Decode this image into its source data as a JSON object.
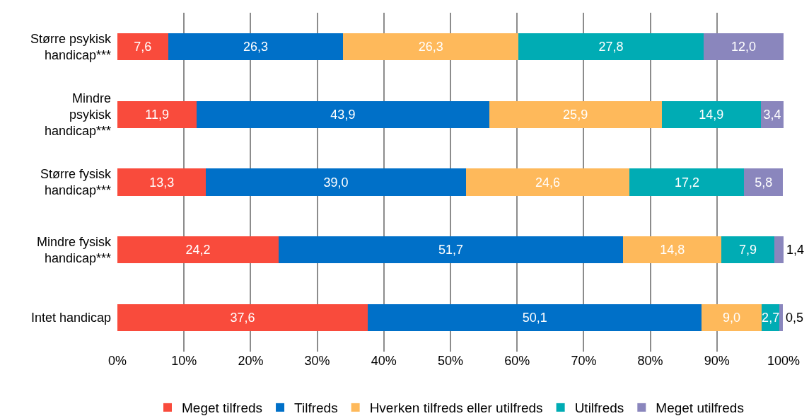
{
  "chart_data": {
    "type": "bar",
    "orientation": "horizontal",
    "stacked": true,
    "categories": [
      "Større psykisk\nhandicap***",
      "Mindre\npsykisk\nhandicap***",
      "Større fysisk\nhandicap***",
      "Mindre fysisk\nhandicap***",
      "Intet handicap"
    ],
    "series": [
      {
        "name": "Meget tilfreds",
        "color": "#f94b3c",
        "values": [
          7.6,
          11.9,
          13.3,
          24.2,
          37.6
        ],
        "value_labels": [
          "7,6",
          "11,9",
          "13,3",
          "24,2",
          "37,6"
        ]
      },
      {
        "name": "Tilfreds",
        "color": "#0070c8",
        "values": [
          26.3,
          43.9,
          39.0,
          51.7,
          50.1
        ],
        "value_labels": [
          "26,3",
          "43,9",
          "39,0",
          "51,7",
          "50,1"
        ]
      },
      {
        "name": "Hverken tilfreds eller utilfreds",
        "color": "#feb95b",
        "values": [
          26.3,
          25.9,
          24.6,
          14.8,
          9.0
        ],
        "value_labels": [
          "26,3",
          "25,9",
          "24,6",
          "14,8",
          "9,0"
        ]
      },
      {
        "name": "Utilfreds",
        "color": "#00acb4",
        "values": [
          27.8,
          14.9,
          17.2,
          7.9,
          2.7
        ],
        "value_labels": [
          "27,8",
          "14,9",
          "17,2",
          "7,9",
          "2,7"
        ]
      },
      {
        "name": "Meget utilfreds",
        "color": "#8a86bd",
        "values": [
          12.0,
          3.4,
          5.8,
          1.4,
          0.5
        ],
        "value_labels": [
          "12,0",
          "3,4",
          "5,8",
          "1,4",
          "0,5"
        ]
      }
    ],
    "xlim": [
      0,
      100
    ],
    "xticks": [
      {
        "value": 0,
        "label": "0%"
      },
      {
        "value": 10,
        "label": "10%"
      },
      {
        "value": 20,
        "label": "20%"
      },
      {
        "value": 30,
        "label": "30%"
      },
      {
        "value": 40,
        "label": "40%"
      },
      {
        "value": 50,
        "label": "50%"
      },
      {
        "value": 60,
        "label": "60%"
      },
      {
        "value": 70,
        "label": "70%"
      },
      {
        "value": 80,
        "label": "80%"
      },
      {
        "value": 90,
        "label": "90%"
      },
      {
        "value": 100,
        "label": "100%"
      }
    ],
    "grid": "x",
    "legend": "bottom"
  }
}
